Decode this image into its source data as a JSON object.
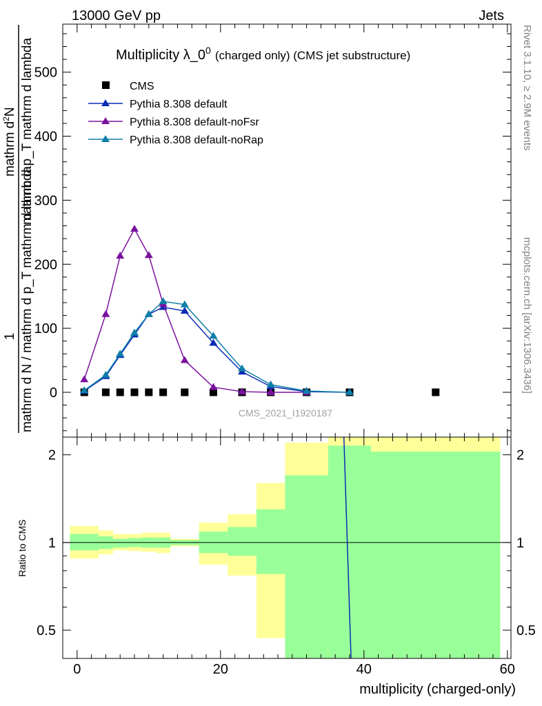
{
  "header": {
    "energy_label": "13000 GeV pp",
    "process_label": "Jets"
  },
  "side_labels": {
    "rivet": "Rivet 3.1.10, ≥ 2.9M events",
    "mcplots": "mcplots.cern.ch [arXiv:1306.3436]"
  },
  "analysis_id": "CMS_2021_I1920187",
  "top_panel": {
    "title_main": "Multiplicity λ_0",
    "title_sup": "0",
    "title_suffix": "(charged only) (CMS jet substructure)",
    "ylabel_one": "1",
    "ylabel_den": "mathrm d N / mathrm d p_T mathrm d lambda",
    "ylabel_num_a": "mathrm d",
    "ylabel_num_sup": "2",
    "ylabel_num_b": "N",
    "ylabel_den2": "mathrm d p_T mathrm d lambda",
    "yticks": [
      0,
      100,
      200,
      300,
      400,
      500
    ],
    "ylim": [
      -70,
      575
    ]
  },
  "bottom_panel": {
    "ylabel": "Ratio to CMS",
    "yticks": [
      0.5,
      1,
      2
    ],
    "ytick_labels": [
      "0.5",
      "1",
      "2"
    ],
    "ylim": [
      0.4,
      2.3
    ]
  },
  "xaxis": {
    "label": "multiplicity (charged-only)",
    "ticks": [
      0,
      20,
      40,
      60
    ],
    "xlim": [
      -2,
      60.5
    ]
  },
  "colors": {
    "cms": "#000000",
    "default": "#0a2bb5",
    "noFsr": "#7b119f",
    "noRap": "#0e7ea8",
    "band_green": "#99ff99",
    "band_yellow": "#ffff99"
  },
  "chart_data": {
    "type": "line",
    "x_edges": [
      -1,
      3,
      5,
      7,
      9,
      11,
      13,
      17,
      21,
      25,
      29,
      35,
      41,
      59
    ],
    "series": [
      {
        "name": "CMS",
        "marker": "square",
        "x": [
          1,
          4,
          6,
          8,
          10,
          12,
          15,
          19,
          23,
          27,
          32,
          38,
          50
        ],
        "y": [
          0,
          0,
          0,
          0,
          0,
          0,
          0,
          0,
          0,
          0,
          0,
          0,
          0
        ]
      },
      {
        "name": "Pythia 8.308 default",
        "marker": "triangle",
        "x": [
          1,
          4,
          6,
          8,
          10,
          12,
          15,
          19,
          23,
          27,
          32,
          38
        ],
        "y": [
          2,
          25,
          58,
          90,
          122,
          133,
          127,
          77,
          32,
          9,
          1,
          0
        ]
      },
      {
        "name": "Pythia 8.308 default-noFsr",
        "marker": "triangle",
        "x": [
          1,
          4,
          6,
          8,
          10,
          12,
          15,
          19,
          23,
          27,
          32
        ],
        "y": [
          20,
          122,
          213,
          255,
          214,
          138,
          50,
          8,
          1,
          0,
          0
        ]
      },
      {
        "name": "Pythia 8.308 default-noRap",
        "marker": "triangle",
        "x": [
          1,
          4,
          6,
          8,
          10,
          12,
          15,
          19,
          23,
          27,
          32,
          38
        ],
        "y": [
          3,
          27,
          60,
          93,
          122,
          142,
          137,
          88,
          37,
          12,
          2,
          0
        ]
      }
    ],
    "ratio_bands": {
      "green": [
        {
          "x0": -1,
          "x1": 3,
          "lo": 0.94,
          "hi": 1.07
        },
        {
          "x0": 3,
          "x1": 5,
          "lo": 0.95,
          "hi": 1.05
        },
        {
          "x0": 5,
          "x1": 7,
          "lo": 0.96,
          "hi": 1.03
        },
        {
          "x0": 7,
          "x1": 9,
          "lo": 0.965,
          "hi": 1.035
        },
        {
          "x0": 9,
          "x1": 11,
          "lo": 0.96,
          "hi": 1.04
        },
        {
          "x0": 11,
          "x1": 13,
          "lo": 0.96,
          "hi": 1.04
        },
        {
          "x0": 13,
          "x1": 17,
          "lo": 0.98,
          "hi": 1.02
        },
        {
          "x0": 17,
          "x1": 21,
          "lo": 0.92,
          "hi": 1.09
        },
        {
          "x0": 21,
          "x1": 25,
          "lo": 0.9,
          "hi": 1.13
        },
        {
          "x0": 25,
          "x1": 29,
          "lo": 0.78,
          "hi": 1.3
        },
        {
          "x0": 29,
          "x1": 35,
          "lo": 0.3,
          "hi": 1.7
        },
        {
          "x0": 35,
          "x1": 41,
          "lo": 0.3,
          "hi": 2.15
        },
        {
          "x0": 41,
          "x1": 59,
          "lo": 0.3,
          "hi": 2.05
        }
      ],
      "yellow": [
        {
          "x0": -1,
          "x1": 3,
          "lo": 0.88,
          "hi": 1.14
        },
        {
          "x0": 3,
          "x1": 5,
          "lo": 0.91,
          "hi": 1.1
        },
        {
          "x0": 5,
          "x1": 7,
          "lo": 0.94,
          "hi": 1.07
        },
        {
          "x0": 7,
          "x1": 9,
          "lo": 0.935,
          "hi": 1.07
        },
        {
          "x0": 9,
          "x1": 11,
          "lo": 0.93,
          "hi": 1.08
        },
        {
          "x0": 11,
          "x1": 13,
          "lo": 0.92,
          "hi": 1.08
        },
        {
          "x0": 13,
          "x1": 17,
          "lo": 0.97,
          "hi": 1.03
        },
        {
          "x0": 17,
          "x1": 21,
          "lo": 0.84,
          "hi": 1.17
        },
        {
          "x0": 21,
          "x1": 25,
          "lo": 0.77,
          "hi": 1.25
        },
        {
          "x0": 25,
          "x1": 29,
          "lo": 0.47,
          "hi": 1.6
        },
        {
          "x0": 29,
          "x1": 35,
          "lo": 0.3,
          "hi": 2.2
        },
        {
          "x0": 35,
          "x1": 41,
          "lo": 0.3,
          "hi": 2.4
        },
        {
          "x0": 41,
          "x1": 59,
          "lo": 0.3,
          "hi": 2.4
        }
      ]
    },
    "ratio_line": {
      "name": "Pythia 8.308 default",
      "x": [
        37.2,
        38.2
      ],
      "y": [
        2.4,
        0.3
      ]
    }
  }
}
